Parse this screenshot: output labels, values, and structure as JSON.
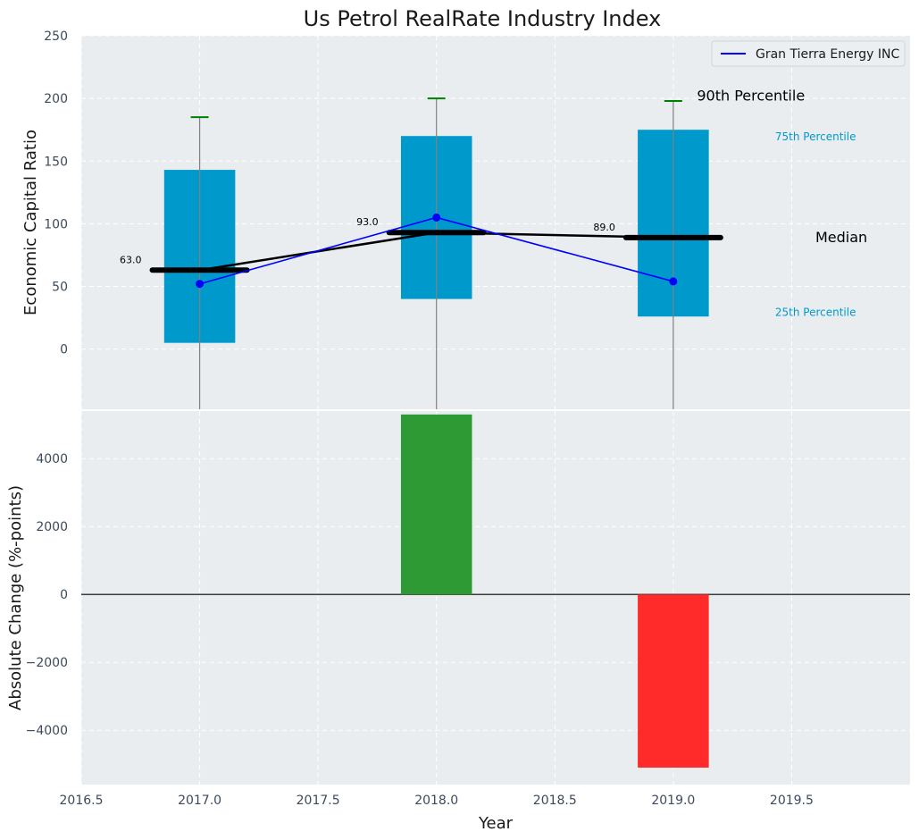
{
  "title": "Us Petrol RealRate Industry Index",
  "colors": {
    "panel_bg": "#e9edef",
    "box": "#0099cc",
    "whisker": "#808080",
    "cap": "#008000",
    "median": "#000000",
    "company": "#0000ff",
    "positive": "#2e9a33",
    "negative": "#ff2b2b",
    "grid": "#ffffff"
  },
  "chart_data": [
    {
      "type": "box",
      "ylabel": "Economic Capital Ratio",
      "xlim": [
        2016.5,
        2020.0
      ],
      "ylim": [
        -48,
        250
      ],
      "yticks": [
        0,
        50,
        100,
        150,
        200,
        250
      ],
      "grid": true,
      "legend_position": "top-right",
      "years": [
        2017,
        2018,
        2019
      ],
      "p25": [
        5,
        40,
        26
      ],
      "p75": [
        143,
        170,
        175
      ],
      "p90": [
        185,
        200,
        198
      ],
      "p10": [
        -48,
        -48,
        -48
      ],
      "median": [
        63,
        93,
        89
      ],
      "median_labels": [
        "63.0",
        "93.0",
        "89.0"
      ],
      "series": [
        {
          "name": "Gran Tierra Energy INC",
          "x": [
            2017,
            2018,
            2019
          ],
          "y": [
            52,
            105,
            54
          ]
        }
      ],
      "annotations": [
        {
          "text": "90th Percentile",
          "x": 2019.1,
          "y": 202
        },
        {
          "text": "75th Percentile",
          "x": 2019.43,
          "y": 170
        },
        {
          "text": "Median",
          "x": 2019.6,
          "y": 89
        },
        {
          "text": "25th Percentile",
          "x": 2019.43,
          "y": 30
        }
      ]
    },
    {
      "type": "bar",
      "xlabel": "Year",
      "ylabel": "Absolute Change (%-points)",
      "xlim": [
        2016.5,
        2020.0
      ],
      "ylim": [
        -5600,
        5400
      ],
      "yticks": [
        -4000,
        -2000,
        0,
        2000,
        4000
      ],
      "xticks": [
        2016.5,
        2017.0,
        2017.5,
        2018.0,
        2018.5,
        2019.0,
        2019.5
      ],
      "grid": true,
      "x": [
        2018,
        2019
      ],
      "values": [
        5300,
        -5100
      ]
    }
  ]
}
